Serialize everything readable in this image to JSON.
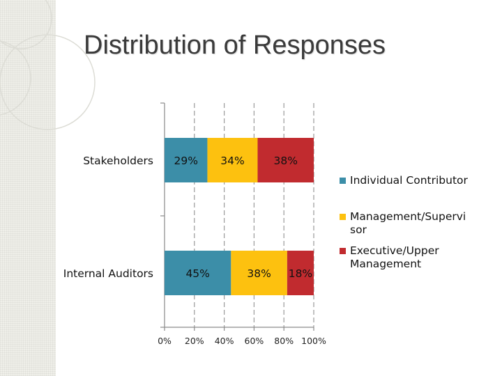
{
  "title": "Distribution of Responses",
  "chart_data": {
    "type": "bar",
    "orientation": "horizontal",
    "stacked": true,
    "percent_stacked": true,
    "categories": [
      "Stakeholders",
      "Internal Auditors"
    ],
    "series": [
      {
        "name": "Individual Contributor",
        "values": [
          29,
          45
        ],
        "labels": [
          "29%",
          "45%"
        ],
        "color": "#3c8ea8"
      },
      {
        "name": "Management/Supervisor",
        "values": [
          34,
          38
        ],
        "labels": [
          "34%",
          "38%"
        ],
        "color": "#fdc10f"
      },
      {
        "name": "Executive/Upper Management",
        "values": [
          38,
          18
        ],
        "labels": [
          "38%",
          "18%"
        ],
        "color": "#c12b2f"
      }
    ],
    "x_ticks": [
      "0%",
      "20%",
      "40%",
      "60%",
      "80%",
      "100%"
    ],
    "xlim": [
      0,
      100
    ],
    "grid": "vertical dashed",
    "legend_position": "right"
  },
  "legend": [
    {
      "line1": "Individual Contributor",
      "line2": "",
      "color": "#3c8ea8"
    },
    {
      "line1": "Management/Supervi",
      "line2": "sor",
      "color": "#fdc10f"
    },
    {
      "line1": "Executive/Upper",
      "line2": "Management",
      "color": "#c12b2f"
    }
  ]
}
